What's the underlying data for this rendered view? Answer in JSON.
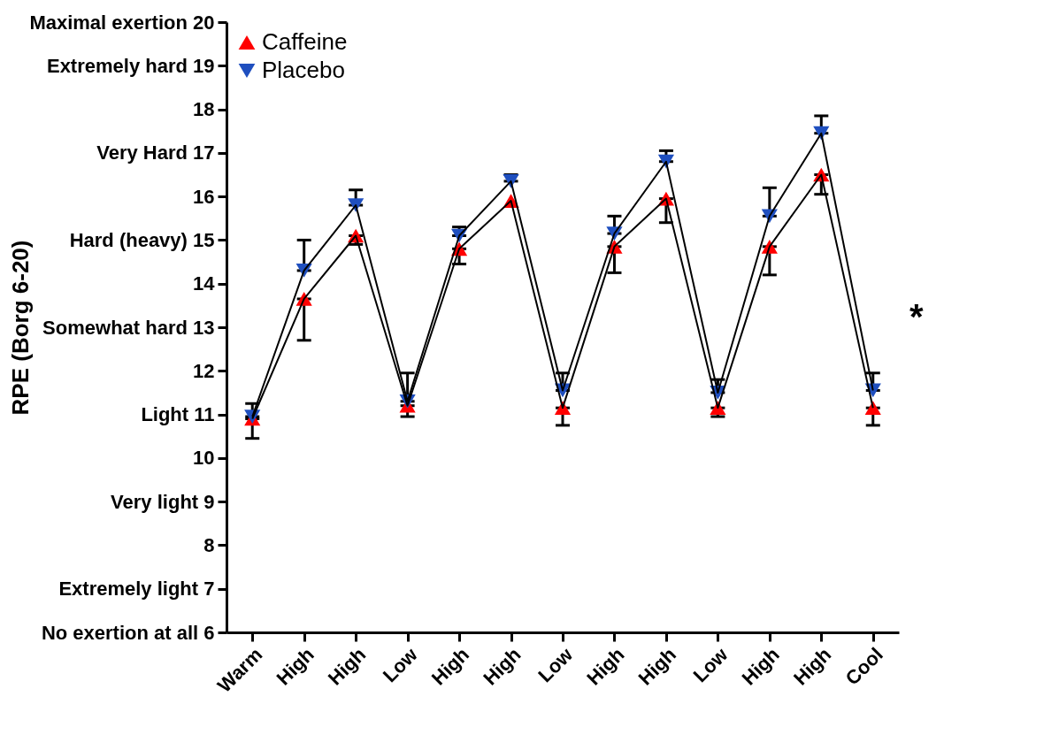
{
  "chart_data": {
    "type": "line",
    "ylabel": "RPE (Borg 6-20)",
    "categories": [
      "Warm",
      "High",
      "High",
      "Low",
      "High",
      "High",
      "Low",
      "High",
      "High",
      "Low",
      "High",
      "High",
      "Cool"
    ],
    "series": [
      {
        "name": "Caffeine",
        "color": "#ff0000",
        "values": [
          10.9,
          13.65,
          15.1,
          11.2,
          14.8,
          15.9,
          11.15,
          14.85,
          15.95,
          11.15,
          14.85,
          16.5,
          11.15
        ],
        "errors": [
          [
            10.45,
            10.9
          ],
          [
            12.7,
            13.65
          ],
          [
            14.9,
            15.1
          ],
          [
            10.95,
            11.2
          ],
          [
            14.45,
            14.8
          ],
          null,
          [
            10.75,
            11.15
          ],
          [
            14.25,
            14.85
          ],
          [
            15.4,
            15.95
          ],
          [
            10.95,
            11.15
          ],
          [
            14.2,
            14.85
          ],
          [
            16.05,
            16.5
          ],
          [
            10.75,
            11.15
          ]
        ]
      },
      {
        "name": "Placebo",
        "color": "#1f4fbf",
        "values": [
          10.95,
          14.3,
          15.8,
          11.3,
          15.1,
          16.35,
          11.55,
          15.15,
          16.8,
          11.5,
          15.55,
          17.45,
          11.55
        ],
        "errors": [
          [
            10.95,
            11.25
          ],
          [
            14.3,
            15.0
          ],
          [
            15.8,
            16.15
          ],
          [
            11.3,
            11.95
          ],
          [
            15.1,
            15.3
          ],
          [
            16.35,
            16.5
          ],
          [
            11.55,
            11.95
          ],
          [
            15.15,
            15.55
          ],
          [
            16.8,
            17.05
          ],
          [
            11.5,
            11.8
          ],
          [
            15.55,
            16.2
          ],
          [
            17.45,
            17.85
          ],
          [
            11.55,
            11.95
          ]
        ]
      }
    ],
    "ylim": [
      6,
      20
    ],
    "yticks": [
      {
        "value": 6,
        "label": "No exertion at all 6"
      },
      {
        "value": 7,
        "label": "Extremely light 7"
      },
      8,
      {
        "value": 9,
        "label": "Very light 9"
      },
      10,
      {
        "value": 11,
        "label": "Light 11"
      },
      12,
      {
        "value": 13,
        "label": "Somewhat hard 13"
      },
      14,
      {
        "value": 15,
        "label": "Hard (heavy) 15"
      },
      16,
      {
        "value": 17,
        "label": "Very Hard 17"
      },
      18,
      {
        "value": 19,
        "label": "Extremely hard 19"
      },
      {
        "value": 20,
        "label": "Maximal exertion 20"
      }
    ],
    "annotations": [
      "*"
    ],
    "marker": "triangle",
    "legend": "top left",
    "grid": false
  }
}
